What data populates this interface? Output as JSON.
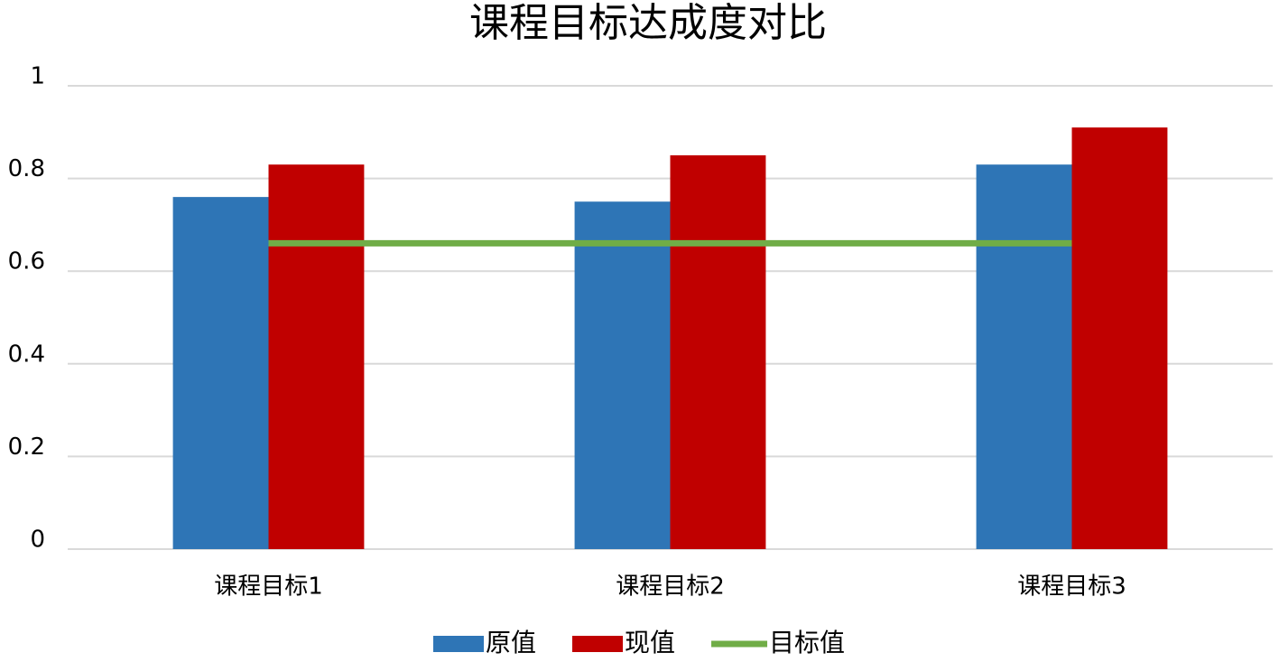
{
  "chart_data": {
    "type": "bar",
    "title": "课程目标达成度对比",
    "categories": [
      "课程目标1",
      "课程目标2",
      "课程目标3"
    ],
    "series": [
      {
        "name": "原值",
        "type": "bar",
        "color": "#2e75b6",
        "values": [
          0.76,
          0.75,
          0.83
        ]
      },
      {
        "name": "现值",
        "type": "bar",
        "color": "#c00000",
        "values": [
          0.83,
          0.85,
          0.91
        ]
      },
      {
        "name": "目标值",
        "type": "line",
        "color": "#70ad47",
        "values": [
          0.66,
          0.66,
          0.66
        ]
      }
    ],
    "ylim": [
      0,
      1
    ],
    "yticks": [
      0,
      0.2,
      0.4,
      0.6,
      0.8,
      1
    ],
    "grid": true,
    "legend": "bottom"
  }
}
